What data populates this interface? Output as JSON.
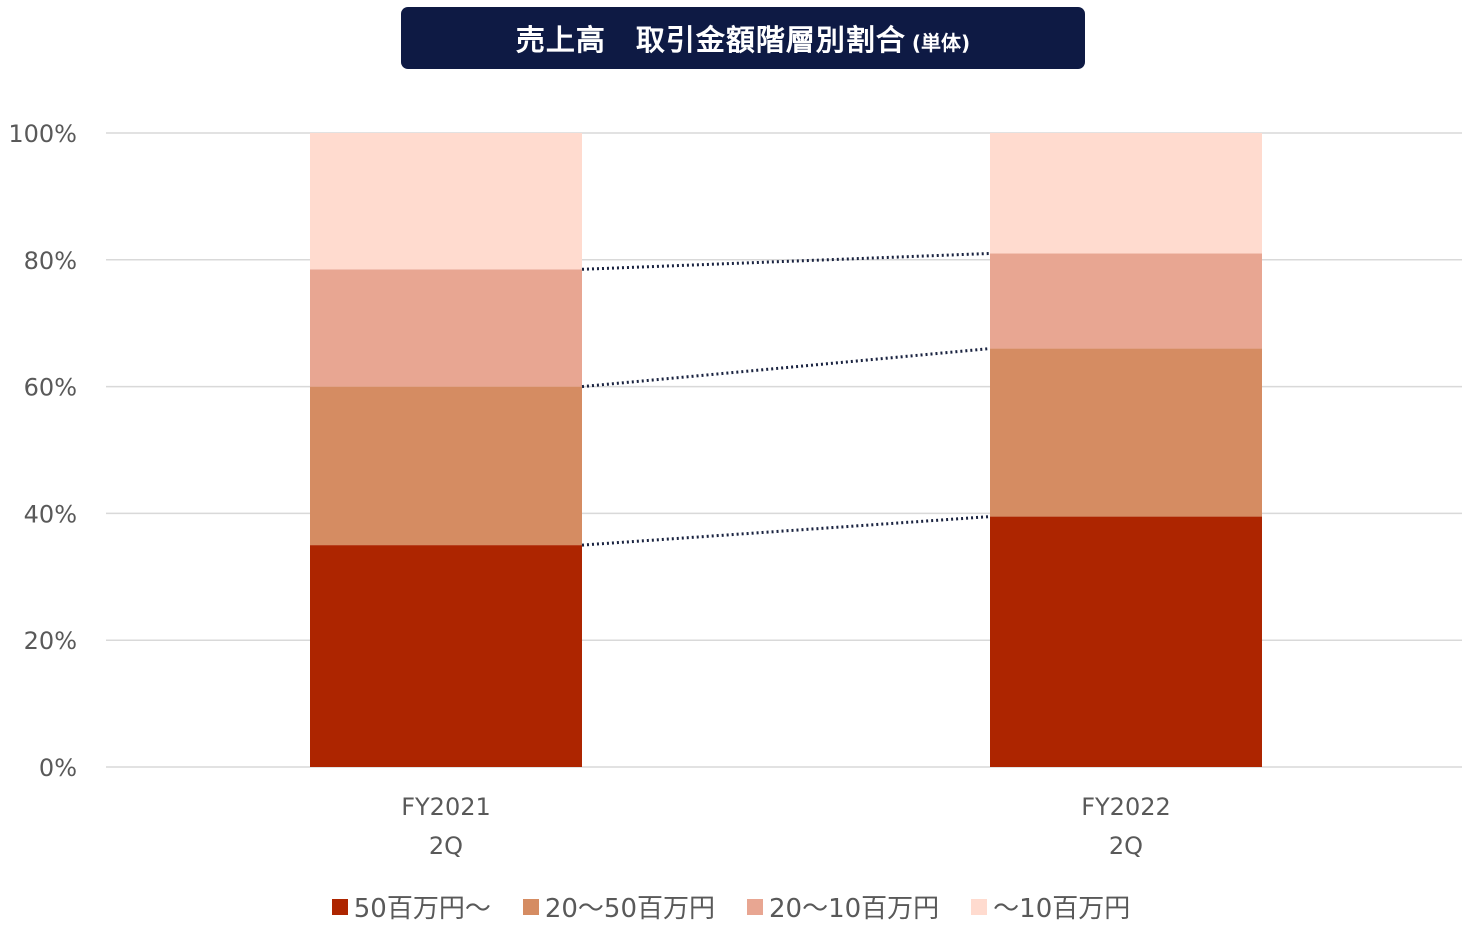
{
  "title": {
    "main": "売上高　取引金額階層別割合",
    "sub": "(単体)"
  },
  "colors": {
    "title_bg": "#0e1a44",
    "grid": "#d9d9d9",
    "connector": "#1a2340"
  },
  "chart_data": {
    "type": "bar",
    "stacked": true,
    "categories": [
      {
        "line1": "FY2021",
        "line2": "2Q"
      },
      {
        "line1": "FY2022",
        "line2": "2Q"
      }
    ],
    "series": [
      {
        "name": "50百万円〜",
        "color": "#ad2500",
        "values": [
          35,
          39.5
        ]
      },
      {
        "name": "20〜50百万円",
        "color": "#d58c62",
        "values": [
          25,
          26.5
        ]
      },
      {
        "name": "20〜10百万円",
        "color": "#e8a692",
        "values": [
          18.5,
          15
        ]
      },
      {
        "name": "〜10百万円",
        "color": "#ffdbcf",
        "values": [
          21.5,
          19
        ]
      }
    ],
    "ylim": [
      0,
      100
    ],
    "yticks": [
      "0%",
      "20%",
      "40%",
      "60%",
      "80%",
      "100%"
    ],
    "ytick_values": [
      0,
      20,
      40,
      60,
      80,
      100
    ],
    "grid": true,
    "legend_position": "bottom",
    "connector_lines": "dotted"
  }
}
